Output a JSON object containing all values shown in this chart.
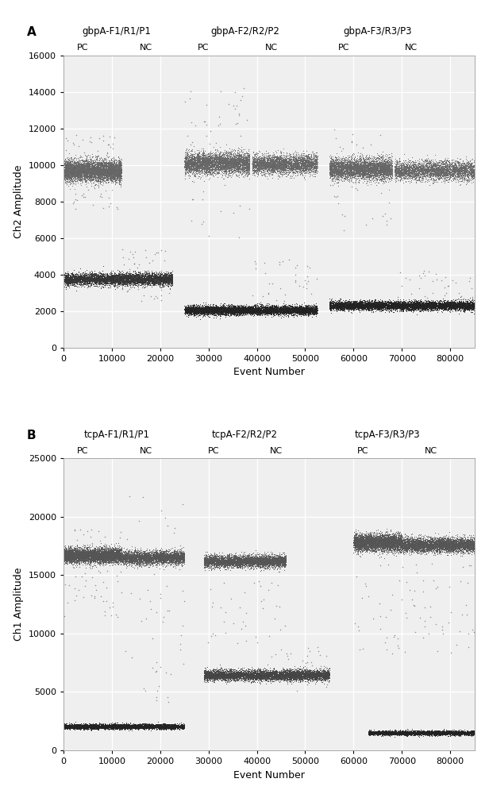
{
  "panel_A": {
    "title_label": "A",
    "ylabel": "Ch2 Amplitude",
    "xlabel": "Event Number",
    "ylim": [
      0,
      16000
    ],
    "yticks": [
      0,
      2000,
      4000,
      6000,
      8000,
      10000,
      12000,
      14000,
      16000
    ],
    "xlim": [
      0,
      85000
    ],
    "xticks": [
      0,
      10000,
      20000,
      30000,
      40000,
      50000,
      60000,
      70000,
      80000
    ],
    "group_labels": [
      "gbpA-F1/R1/P1",
      "gbpA-F2/R2/P2",
      "gbpA-F3/R3/P3"
    ],
    "group_centers": [
      11000,
      37500,
      65000
    ],
    "pc_nc_labels": [
      {
        "pc_x": 4000,
        "nc_x": 17000
      },
      {
        "pc_x": 29000,
        "nc_x": 43000
      },
      {
        "pc_x": 58000,
        "nc_x": 72000
      }
    ],
    "clusters": [
      {
        "x_start": 100,
        "x_end": 12000,
        "y_center": 9700,
        "y_spread": 280,
        "n": 6000,
        "color": "#666666"
      },
      {
        "x_start": 100,
        "x_end": 22500,
        "y_center": 3750,
        "y_spread": 160,
        "n": 6000,
        "color": "#333333"
      },
      {
        "x_start": 25000,
        "x_end": 38500,
        "y_center": 10100,
        "y_spread": 280,
        "n": 5000,
        "color": "#666666"
      },
      {
        "x_start": 25000,
        "x_end": 52500,
        "y_center": 2050,
        "y_spread": 120,
        "n": 8000,
        "color": "#222222"
      },
      {
        "x_start": 39000,
        "x_end": 52500,
        "y_center": 10050,
        "y_spread": 250,
        "n": 4000,
        "color": "#666666"
      },
      {
        "x_start": 55000,
        "x_end": 68000,
        "y_center": 9800,
        "y_spread": 280,
        "n": 5000,
        "color": "#666666"
      },
      {
        "x_start": 55000,
        "x_end": 85000,
        "y_center": 2300,
        "y_spread": 120,
        "n": 8000,
        "color": "#222222"
      },
      {
        "x_start": 68500,
        "x_end": 85000,
        "y_center": 9700,
        "y_spread": 250,
        "n": 4000,
        "color": "#666666"
      }
    ],
    "sparse_outliers": [
      {
        "x_start": 100,
        "x_end": 12000,
        "y_min": 7500,
        "y_max": 11800,
        "n": 80
      },
      {
        "x_start": 12000,
        "x_end": 22500,
        "y_min": 2500,
        "y_max": 5500,
        "n": 60
      },
      {
        "x_start": 25000,
        "x_end": 38500,
        "y_min": 6000,
        "y_max": 14200,
        "n": 60
      },
      {
        "x_start": 39000,
        "x_end": 52500,
        "y_min": 2000,
        "y_max": 5000,
        "n": 40
      },
      {
        "x_start": 55000,
        "x_end": 68000,
        "y_min": 6000,
        "y_max": 12000,
        "n": 50
      },
      {
        "x_start": 68500,
        "x_end": 85000,
        "y_min": 2500,
        "y_max": 4200,
        "n": 40
      }
    ]
  },
  "panel_B": {
    "title_label": "B",
    "ylabel": "Ch1 Amplitude",
    "xlabel": "Event Number",
    "ylim": [
      0,
      25000
    ],
    "yticks": [
      0,
      5000,
      10000,
      15000,
      20000,
      25000
    ],
    "xlim": [
      0,
      85000
    ],
    "xticks": [
      0,
      10000,
      20000,
      30000,
      40000,
      50000,
      60000,
      70000,
      80000
    ],
    "group_labels": [
      "tcpA-F1/R1/P1",
      "tcpA-F2/R2/P2",
      "tcpA-F3/R3/P3"
    ],
    "group_centers": [
      11000,
      37500,
      67000
    ],
    "pc_nc_labels": [
      {
        "pc_x": 4000,
        "nc_x": 17000
      },
      {
        "pc_x": 31000,
        "nc_x": 44000
      },
      {
        "pc_x": 62000,
        "nc_x": 76000
      }
    ],
    "clusters": [
      {
        "x_start": 100,
        "x_end": 12000,
        "y_center": 16700,
        "y_spread": 300,
        "n": 6000,
        "color": "#555555"
      },
      {
        "x_start": 100,
        "x_end": 25000,
        "y_center": 2050,
        "y_spread": 100,
        "n": 6000,
        "color": "#222222"
      },
      {
        "x_start": 12000,
        "x_end": 25000,
        "y_center": 16500,
        "y_spread": 280,
        "n": 4000,
        "color": "#555555"
      },
      {
        "x_start": 29000,
        "x_end": 46000,
        "y_center": 16200,
        "y_spread": 250,
        "n": 5000,
        "color": "#555555"
      },
      {
        "x_start": 29000,
        "x_end": 55000,
        "y_center": 6450,
        "y_spread": 220,
        "n": 7000,
        "color": "#444444"
      },
      {
        "x_start": 60000,
        "x_end": 70000,
        "y_center": 17800,
        "y_spread": 350,
        "n": 5000,
        "color": "#555555"
      },
      {
        "x_start": 70000,
        "x_end": 85000,
        "y_center": 17600,
        "y_spread": 300,
        "n": 5000,
        "color": "#555555"
      },
      {
        "x_start": 63000,
        "x_end": 85000,
        "y_center": 1500,
        "y_spread": 90,
        "n": 5000,
        "color": "#222222"
      }
    ],
    "sparse_outliers": [
      {
        "x_start": 100,
        "x_end": 12000,
        "y_min": 11000,
        "y_max": 19000,
        "n": 80
      },
      {
        "x_start": 12000,
        "x_end": 25000,
        "y_min": 4000,
        "y_max": 22000,
        "n": 60
      },
      {
        "x_start": 29000,
        "x_end": 46000,
        "y_min": 8000,
        "y_max": 17000,
        "n": 60
      },
      {
        "x_start": 46000,
        "x_end": 55000,
        "y_min": 5000,
        "y_max": 9000,
        "n": 30
      },
      {
        "x_start": 60000,
        "x_end": 85000,
        "y_min": 8000,
        "y_max": 16000,
        "n": 80
      }
    ]
  },
  "bg_color": "#efefef",
  "fig_color": "#ffffff",
  "dot_size": 0.5,
  "font_size_label": 9,
  "font_size_axis": 8,
  "font_size_panel": 11,
  "font_size_group": 8.5,
  "font_size_pcnc": 8
}
